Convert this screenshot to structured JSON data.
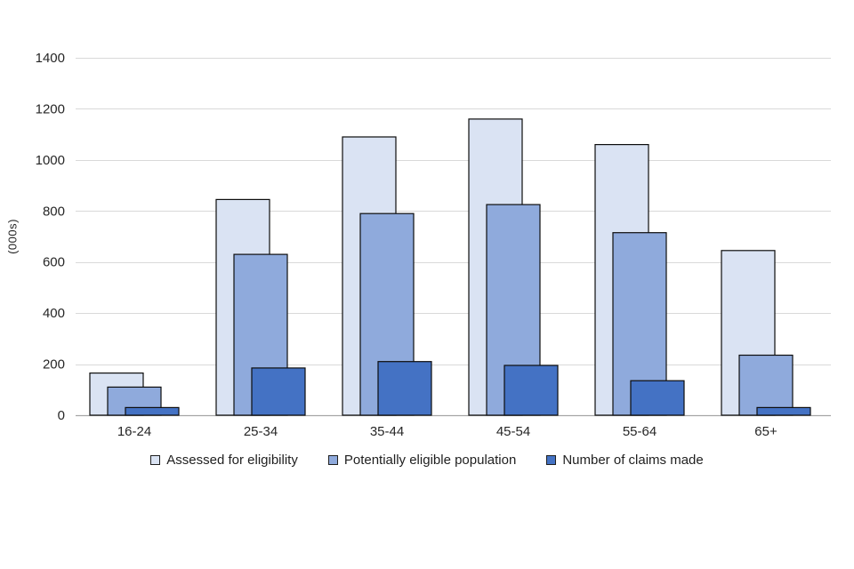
{
  "chart_data": {
    "type": "bar",
    "title": "",
    "ylabel": "(000s)",
    "xlabel": "",
    "categories": [
      "16-24",
      "25-34",
      "35-44",
      "45-54",
      "55-64",
      "65+"
    ],
    "series": [
      {
        "name": "Assessed for eligibility",
        "color": "#dae3f3",
        "values": [
          165,
          845,
          1090,
          1160,
          1060,
          645
        ]
      },
      {
        "name": "Potentially eligible population",
        "color": "#8faadc",
        "values": [
          110,
          630,
          790,
          825,
          715,
          235
        ]
      },
      {
        "name": "Number of claims made",
        "color": "#4472c4",
        "values": [
          30,
          185,
          210,
          195,
          135,
          30
        ]
      }
    ],
    "ylim": [
      0,
      1400
    ],
    "ytick_step": 200,
    "yticks": [
      0,
      200,
      400,
      600,
      800,
      1000,
      1200,
      1400
    ],
    "grid": true,
    "legend_position": "bottom",
    "colors": {
      "gridline": "#d9d9d9",
      "axis_line": "#a6a6a6",
      "bar_border": "#0d0d0d",
      "text": "#262626"
    }
  }
}
